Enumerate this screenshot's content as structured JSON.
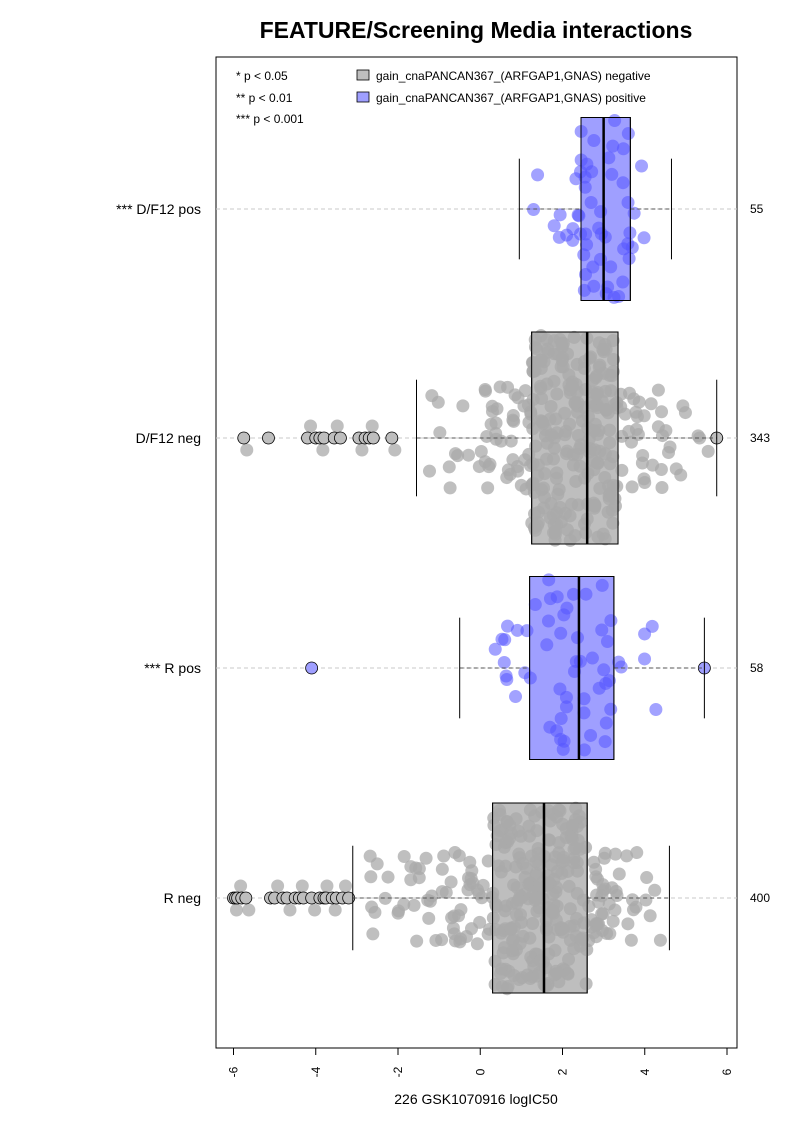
{
  "chart_data": {
    "type": "box",
    "title": "FEATURE/Screening Media interactions",
    "xlabel": "226 GSK1070916 logIC50",
    "xlim": [
      -6.4,
      6.3
    ],
    "x_ticks": [
      -6,
      -4,
      -2,
      0,
      2,
      4,
      6
    ],
    "x_tick_labels": [
      "-6",
      "-4",
      "-2",
      "0",
      "2",
      "4",
      "6"
    ],
    "significance_legend": [
      "* p < 0.05",
      "** p < 0.01",
      "*** p < 0.001"
    ],
    "legend": [
      {
        "label": "gain_cnaPANCAN367_(ARFGAP1,GNAS) negative",
        "color": "#bebebe"
      },
      {
        "label": "gain_cnaPANCAN367_(ARFGAP1,GNAS) positive",
        "color": "#9f9fff"
      }
    ],
    "colors": {
      "negative_box": "#bebebe",
      "positive_box": "#9f9fff",
      "negative_points": "#a9a9a9",
      "positive_points": "#5555ff"
    },
    "groups": [
      {
        "label": "R neg",
        "n": "400",
        "color": "negative",
        "whisker_low": -3.1,
        "q1": 0.3,
        "median": 1.55,
        "q3": 2.6,
        "whisker_high": 4.6,
        "outliers_low": [
          -6.0,
          -5.95,
          -5.9,
          -5.8,
          -5.7,
          -5.1,
          -5.0,
          -4.8,
          -4.7,
          -4.5,
          -4.4,
          -4.3,
          -4.1,
          -3.9,
          -3.8,
          -3.75,
          -3.6,
          -3.5,
          -3.35,
          -3.2
        ],
        "outliers_high": [],
        "n_points": 320
      },
      {
        "label": "*** R pos",
        "n": "58",
        "color": "positive",
        "whisker_low": -0.5,
        "q1": 1.2,
        "median": 2.4,
        "q3": 3.25,
        "whisker_high": 5.45,
        "outliers_low": [
          -4.1
        ],
        "outliers_high": [
          5.45
        ],
        "n_points": 58
      },
      {
        "label": "D/F12 neg",
        "n": "343",
        "color": "negative",
        "whisker_low": -1.55,
        "q1": 1.25,
        "median": 2.6,
        "q3": 3.35,
        "whisker_high": 5.75,
        "outliers_low": [
          -5.75,
          -5.15,
          -4.2,
          -4.0,
          -3.9,
          -3.8,
          -3.55,
          -3.4,
          -2.95,
          -2.8,
          -2.7,
          -2.6,
          -2.15
        ],
        "outliers_high": [
          5.75
        ],
        "n_points": 300
      },
      {
        "label": "*** D/F12 pos",
        "n": "55",
        "color": "positive",
        "whisker_low": 0.95,
        "q1": 2.45,
        "median": 3.0,
        "q3": 3.65,
        "whisker_high": 4.65,
        "outliers_low": [],
        "outliers_high": [],
        "n_points": 55
      }
    ]
  }
}
